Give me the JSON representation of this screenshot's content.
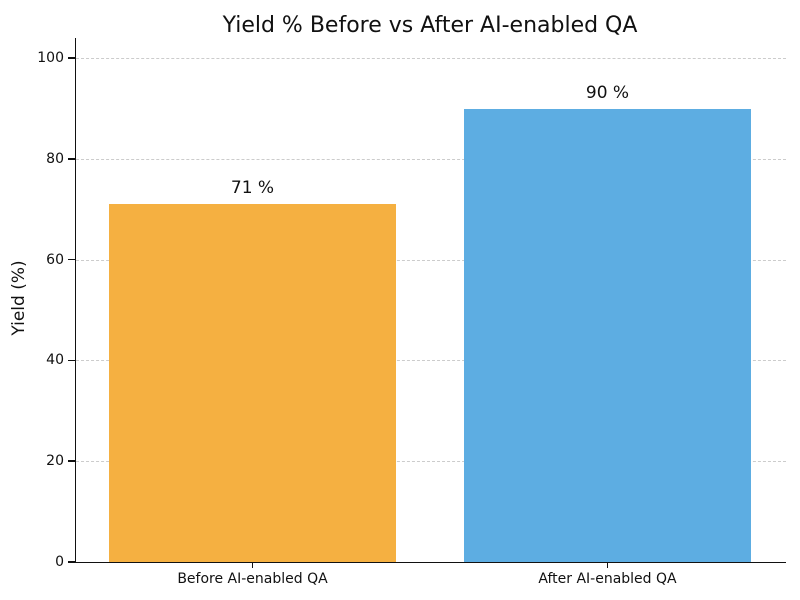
{
  "figure": {
    "background": "#ffffff"
  },
  "chart_data": {
    "type": "bar",
    "title": "Yield % Before vs After AI-enabled QA",
    "categories": [
      "Before AI-enabled QA",
      "After AI-enabled QA"
    ],
    "values": [
      71,
      90
    ],
    "bar_value_labels": [
      "71 %",
      "90 %"
    ],
    "bar_colors": [
      "#F5B041",
      "#5DADE2"
    ],
    "xlabel": "",
    "ylabel": "Yield (%)",
    "ylim": [
      0,
      104
    ],
    "yticks": [
      0,
      20,
      40,
      60,
      80,
      100
    ],
    "grid": {
      "axis": "y",
      "style": "dashed",
      "color": "#cccccc"
    },
    "legend": "none",
    "spines": [
      "left",
      "bottom"
    ]
  }
}
